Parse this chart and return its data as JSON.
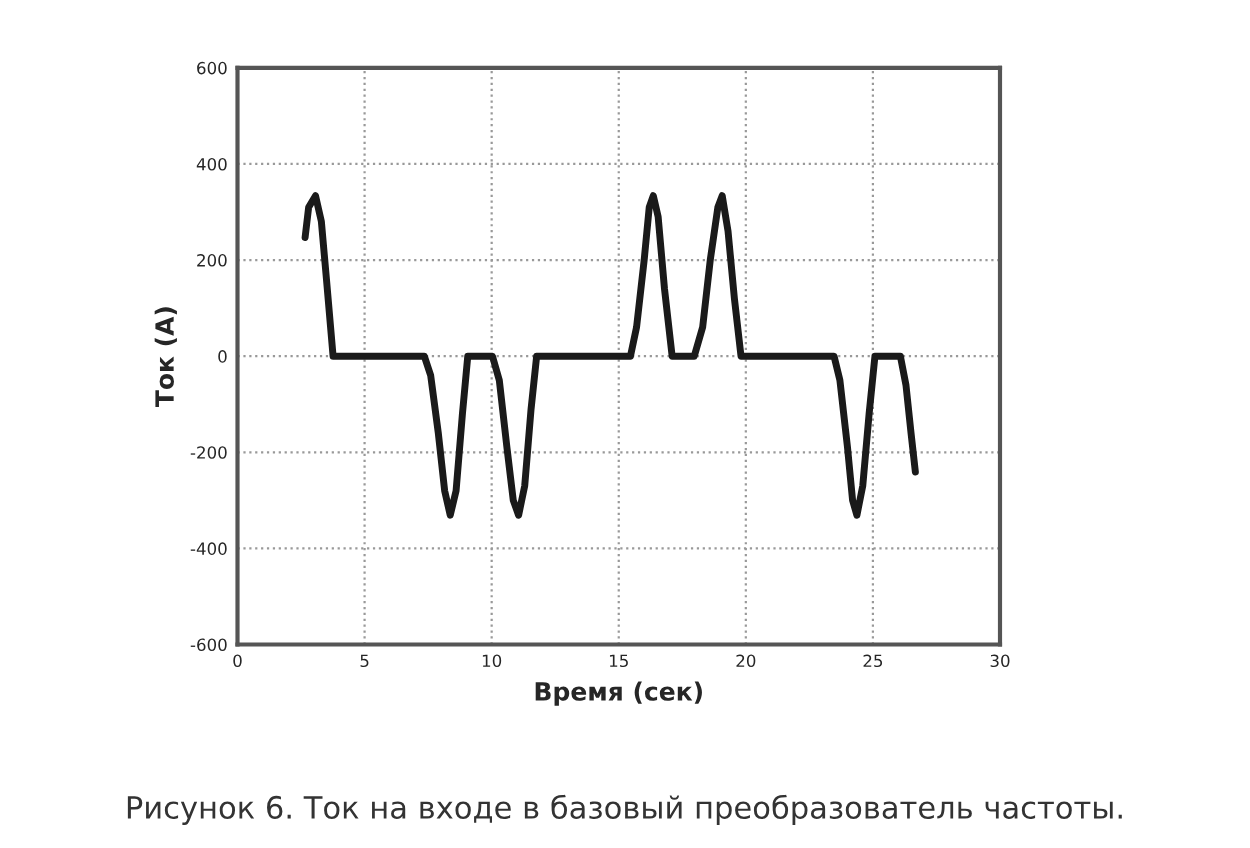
{
  "chart_data": {
    "type": "line",
    "xlabel": "Время (сек)",
    "ylabel": "Ток (A)",
    "xlim": [
      0,
      30
    ],
    "xticks": [
      0,
      5,
      10,
      15,
      20,
      25,
      30
    ],
    "ylim": [
      -600,
      600
    ],
    "yticks": [
      -600,
      -400,
      -200,
      0,
      200,
      400,
      600
    ],
    "grid": true,
    "line_style": "solid",
    "series": [
      {
        "color": "#1a1a1a",
        "x": [
          2.66,
          2.8,
          3.07,
          3.3,
          3.5,
          3.76,
          7.35,
          7.6,
          7.9,
          8.15,
          8.37,
          8.6,
          8.85,
          9.06,
          10.03,
          10.3,
          10.6,
          10.85,
          11.06,
          11.3,
          11.55,
          11.77,
          15.46,
          15.7,
          16.0,
          16.2,
          16.36,
          16.55,
          16.8,
          17.1,
          17.97,
          18.3,
          18.6,
          18.9,
          19.07,
          19.3,
          19.55,
          19.81,
          23.47,
          23.7,
          24.0,
          24.2,
          24.37,
          24.6,
          24.85,
          25.08,
          26.08,
          26.3,
          26.5,
          26.67
        ],
        "values": [
          247,
          310,
          334,
          280,
          160,
          0,
          0,
          -40,
          -160,
          -280,
          -331,
          -280,
          -120,
          0,
          0,
          -50,
          -190,
          -300,
          -331,
          -270,
          -110,
          0,
          0,
          60,
          200,
          310,
          334,
          290,
          140,
          0,
          0,
          60,
          200,
          310,
          334,
          260,
          120,
          0,
          0,
          -50,
          -190,
          -300,
          -331,
          -270,
          -120,
          0,
          0,
          -60,
          -160,
          -241
        ]
      }
    ],
    "annotations": [
      "Рисунок 6. Ток на входе в базовый преобразователь частоты."
    ]
  }
}
